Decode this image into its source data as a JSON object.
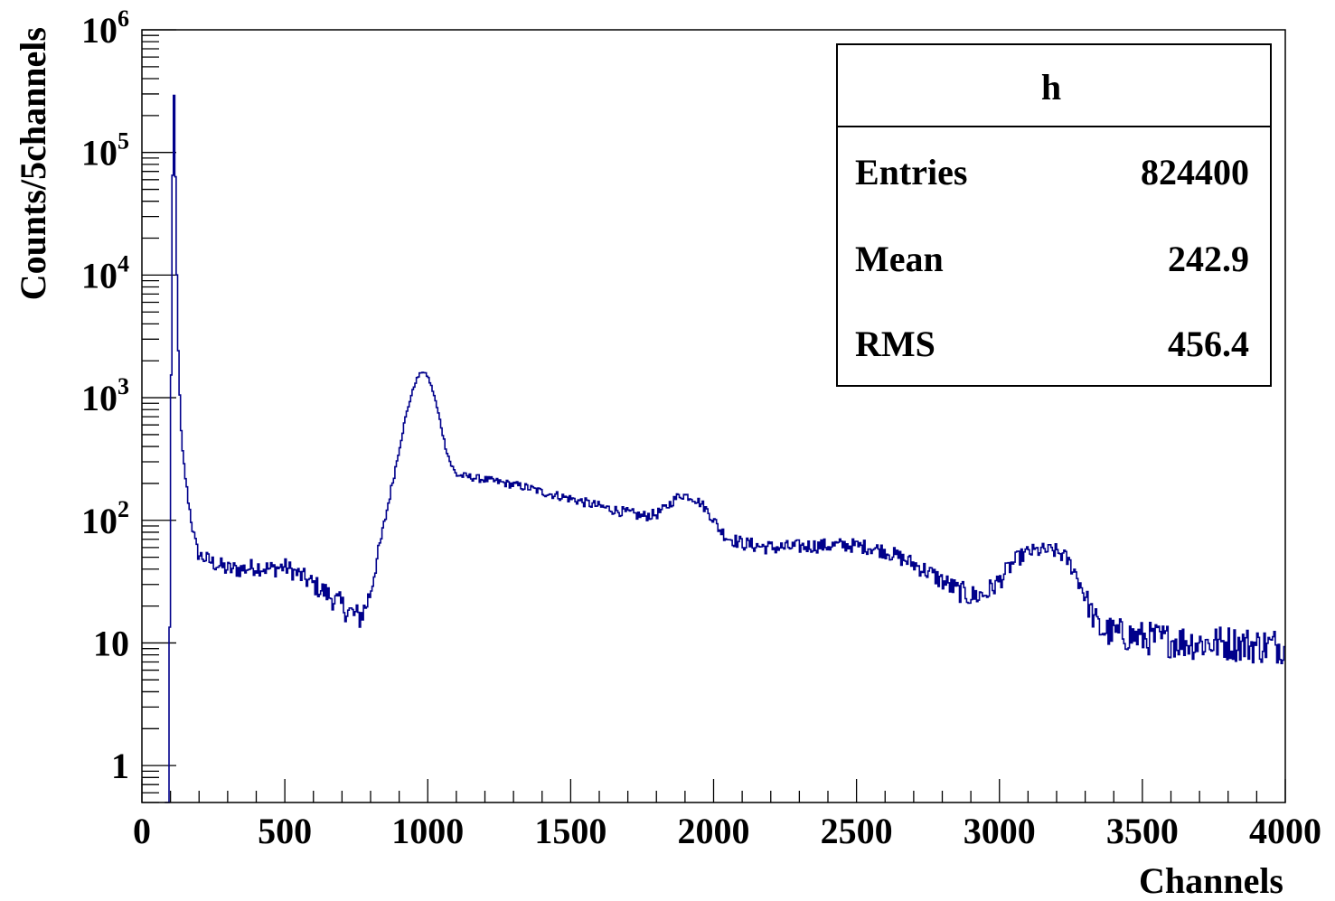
{
  "chart_data": {
    "type": "line",
    "title": "",
    "xlabel": "Channels",
    "ylabel": "Counts/5channels",
    "xlim": [
      0,
      4000
    ],
    "ylim": [
      0.5,
      1000000
    ],
    "yscale": "log",
    "grid": false,
    "x_ticks": [
      "0",
      "500",
      "1000",
      "1500",
      "2000",
      "2500",
      "3000",
      "3500",
      "4000"
    ],
    "y_ticks": [
      {
        "value": 1,
        "base": "1",
        "exp": ""
      },
      {
        "value": 10,
        "base": "10",
        "exp": ""
      },
      {
        "value": 100,
        "base": "10",
        "exp": "2"
      },
      {
        "value": 1000,
        "base": "10",
        "exp": "3"
      },
      {
        "value": 10000,
        "base": "10",
        "exp": "4"
      },
      {
        "value": 100000,
        "base": "10",
        "exp": "5"
      },
      {
        "value": 1000000,
        "base": "10",
        "exp": "6"
      }
    ],
    "series": [
      {
        "color": "#00008b",
        "bin_width": 5,
        "points": [
          [
            80,
            0.5
          ],
          [
            95,
            0.5
          ],
          [
            100,
            300
          ],
          [
            105,
            8000
          ],
          [
            110,
            530000
          ],
          [
            115,
            160000
          ],
          [
            120,
            25000
          ],
          [
            125,
            4000
          ],
          [
            130,
            1500
          ],
          [
            135,
            700
          ],
          [
            140,
            400
          ],
          [
            150,
            250
          ],
          [
            160,
            160
          ],
          [
            170,
            110
          ],
          [
            180,
            80
          ],
          [
            190,
            60
          ],
          [
            200,
            52
          ],
          [
            250,
            45
          ],
          [
            300,
            40
          ],
          [
            350,
            40
          ],
          [
            400,
            42
          ],
          [
            450,
            40
          ],
          [
            500,
            42
          ],
          [
            550,
            36
          ],
          [
            600,
            30
          ],
          [
            650,
            25
          ],
          [
            700,
            20
          ],
          [
            740,
            17
          ],
          [
            760,
            16
          ],
          [
            780,
            19
          ],
          [
            800,
            26
          ],
          [
            820,
            45
          ],
          [
            840,
            75
          ],
          [
            860,
            130
          ],
          [
            880,
            220
          ],
          [
            900,
            380
          ],
          [
            920,
            650
          ],
          [
            940,
            1000
          ],
          [
            960,
            1400
          ],
          [
            980,
            1650
          ],
          [
            1000,
            1500
          ],
          [
            1020,
            1100
          ],
          [
            1040,
            700
          ],
          [
            1060,
            420
          ],
          [
            1080,
            290
          ],
          [
            1100,
            235
          ],
          [
            1150,
            225
          ],
          [
            1200,
            215
          ],
          [
            1250,
            205
          ],
          [
            1300,
            195
          ],
          [
            1350,
            185
          ],
          [
            1400,
            170
          ],
          [
            1450,
            160
          ],
          [
            1500,
            150
          ],
          [
            1550,
            140
          ],
          [
            1600,
            130
          ],
          [
            1650,
            122
          ],
          [
            1700,
            115
          ],
          [
            1750,
            108
          ],
          [
            1800,
            112
          ],
          [
            1830,
            125
          ],
          [
            1860,
            145
          ],
          [
            1880,
            160
          ],
          [
            1900,
            160
          ],
          [
            1930,
            152
          ],
          [
            1960,
            135
          ],
          [
            1990,
            110
          ],
          [
            2020,
            85
          ],
          [
            2050,
            72
          ],
          [
            2100,
            65
          ],
          [
            2150,
            62
          ],
          [
            2200,
            60
          ],
          [
            2250,
            60
          ],
          [
            2300,
            61
          ],
          [
            2350,
            62
          ],
          [
            2400,
            62
          ],
          [
            2450,
            63
          ],
          [
            2500,
            62
          ],
          [
            2550,
            60
          ],
          [
            2600,
            56
          ],
          [
            2650,
            50
          ],
          [
            2700,
            44
          ],
          [
            2750,
            38
          ],
          [
            2800,
            32
          ],
          [
            2850,
            27
          ],
          [
            2900,
            24
          ],
          [
            2950,
            25
          ],
          [
            3000,
            32
          ],
          [
            3030,
            40
          ],
          [
            3060,
            48
          ],
          [
            3100,
            55
          ],
          [
            3150,
            57
          ],
          [
            3200,
            56
          ],
          [
            3230,
            50
          ],
          [
            3260,
            40
          ],
          [
            3290,
            28
          ],
          [
            3320,
            18
          ],
          [
            3350,
            13
          ],
          [
            3400,
            12
          ],
          [
            3500,
            11
          ],
          [
            3600,
            10.5
          ],
          [
            3700,
            10
          ],
          [
            3800,
            10
          ],
          [
            3900,
            9.5
          ],
          [
            4000,
            9.5
          ]
        ]
      }
    ]
  },
  "stats_box": {
    "title": "h",
    "rows": [
      {
        "label": "Entries",
        "value": "824400"
      },
      {
        "label": "Mean",
        "value": "242.9"
      },
      {
        "label": "RMS",
        "value": "456.4"
      }
    ]
  }
}
